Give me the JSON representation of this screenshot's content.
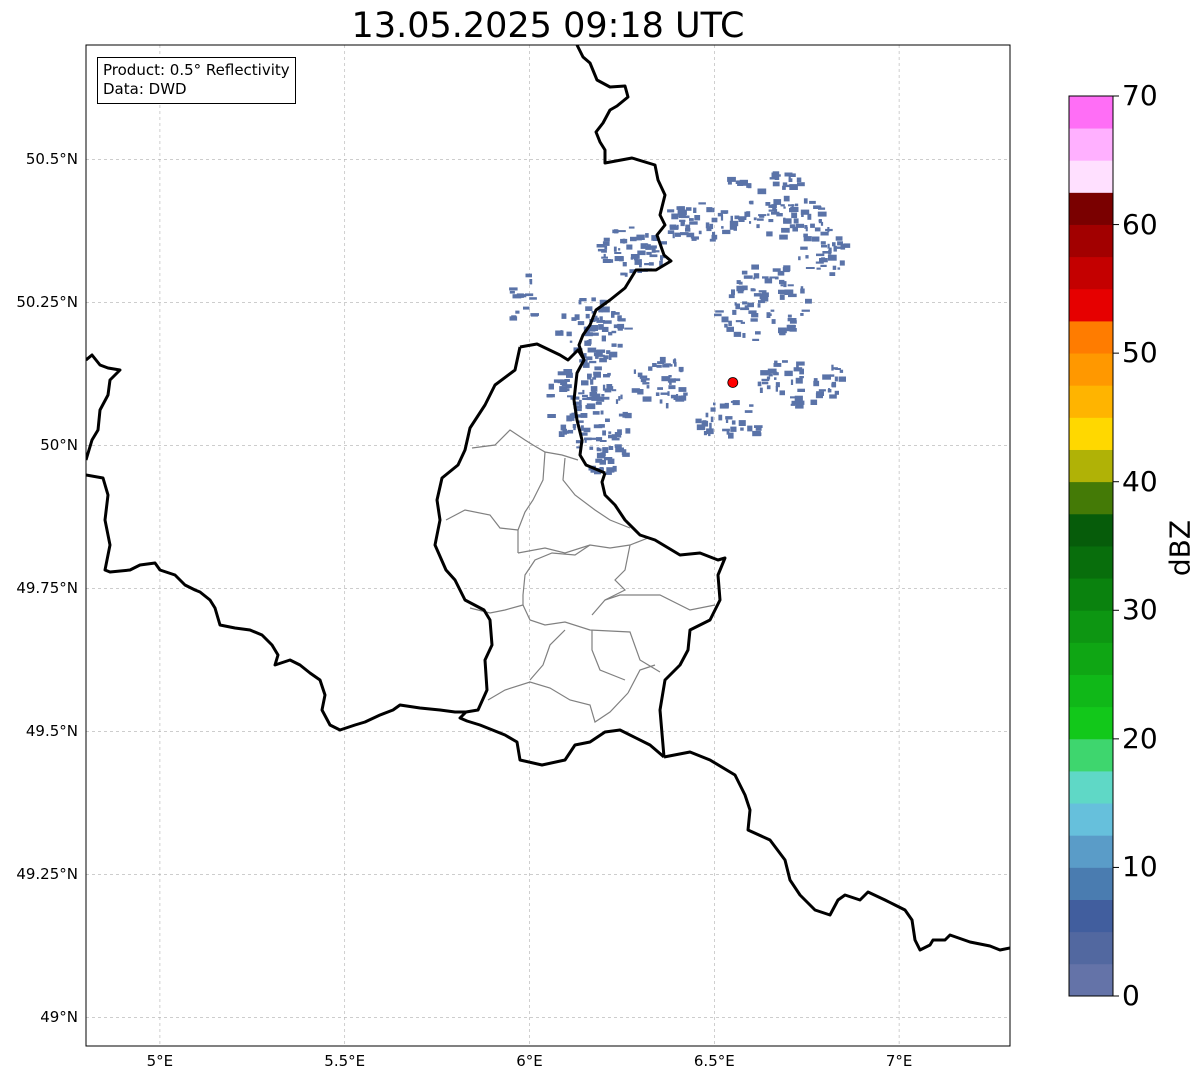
{
  "title": "13.05.2025 09:18 UTC",
  "info": {
    "product_line": "Product: 0.5° Reflectivity",
    "data_line": "Data: DWD"
  },
  "map": {
    "lon_range": [
      4.8,
      7.3
    ],
    "lat_range": [
      48.95,
      50.7
    ],
    "grid": true,
    "lat_ticks": [
      {
        "value": 50.5,
        "label": "50.5°N"
      },
      {
        "value": 50.25,
        "label": "50.25°N"
      },
      {
        "value": 50.0,
        "label": "50°N"
      },
      {
        "value": 49.75,
        "label": "49.75°N"
      },
      {
        "value": 49.5,
        "label": "49.5°N"
      },
      {
        "value": 49.25,
        "label": "49.25°N"
      },
      {
        "value": 49.0,
        "label": "49°N"
      }
    ],
    "lon_ticks": [
      {
        "value": 5.0,
        "label": "5°E"
      },
      {
        "value": 5.5,
        "label": "5.5°E"
      },
      {
        "value": 6.0,
        "label": "6°E"
      },
      {
        "value": 6.5,
        "label": "6.5°E"
      },
      {
        "value": 7.0,
        "label": "7°E"
      }
    ],
    "radar_site": {
      "lon": 6.55,
      "lat": 50.11,
      "color": "#ff0000"
    },
    "border_color": "#000000",
    "district_color": "#808080",
    "echo_color": "#5a73a8"
  },
  "colorbar": {
    "label": "dBZ",
    "min": 0,
    "max": 70,
    "step": 2.5,
    "ticks": [
      "0",
      "10",
      "20",
      "30",
      "40",
      "50",
      "60",
      "70"
    ],
    "colors": [
      "#6473a8",
      "#5268a0",
      "#415e9e",
      "#4a7cb0",
      "#5a9cc8",
      "#66c0dc",
      "#5fd8c6",
      "#3ed66e",
      "#12c81a",
      "#10b818",
      "#0fa614",
      "#0d9612",
      "#0a820e",
      "#086e0c",
      "#065c0a",
      "#447a06",
      "#b0b206",
      "#ffd800",
      "#ffb400",
      "#ff9800",
      "#ff7c00",
      "#e60000",
      "#c40000",
      "#a20000",
      "#7a0000",
      "#ffe0ff",
      "#ffb0ff",
      "#ff6ef6",
      "#ec38ec"
    ]
  }
}
